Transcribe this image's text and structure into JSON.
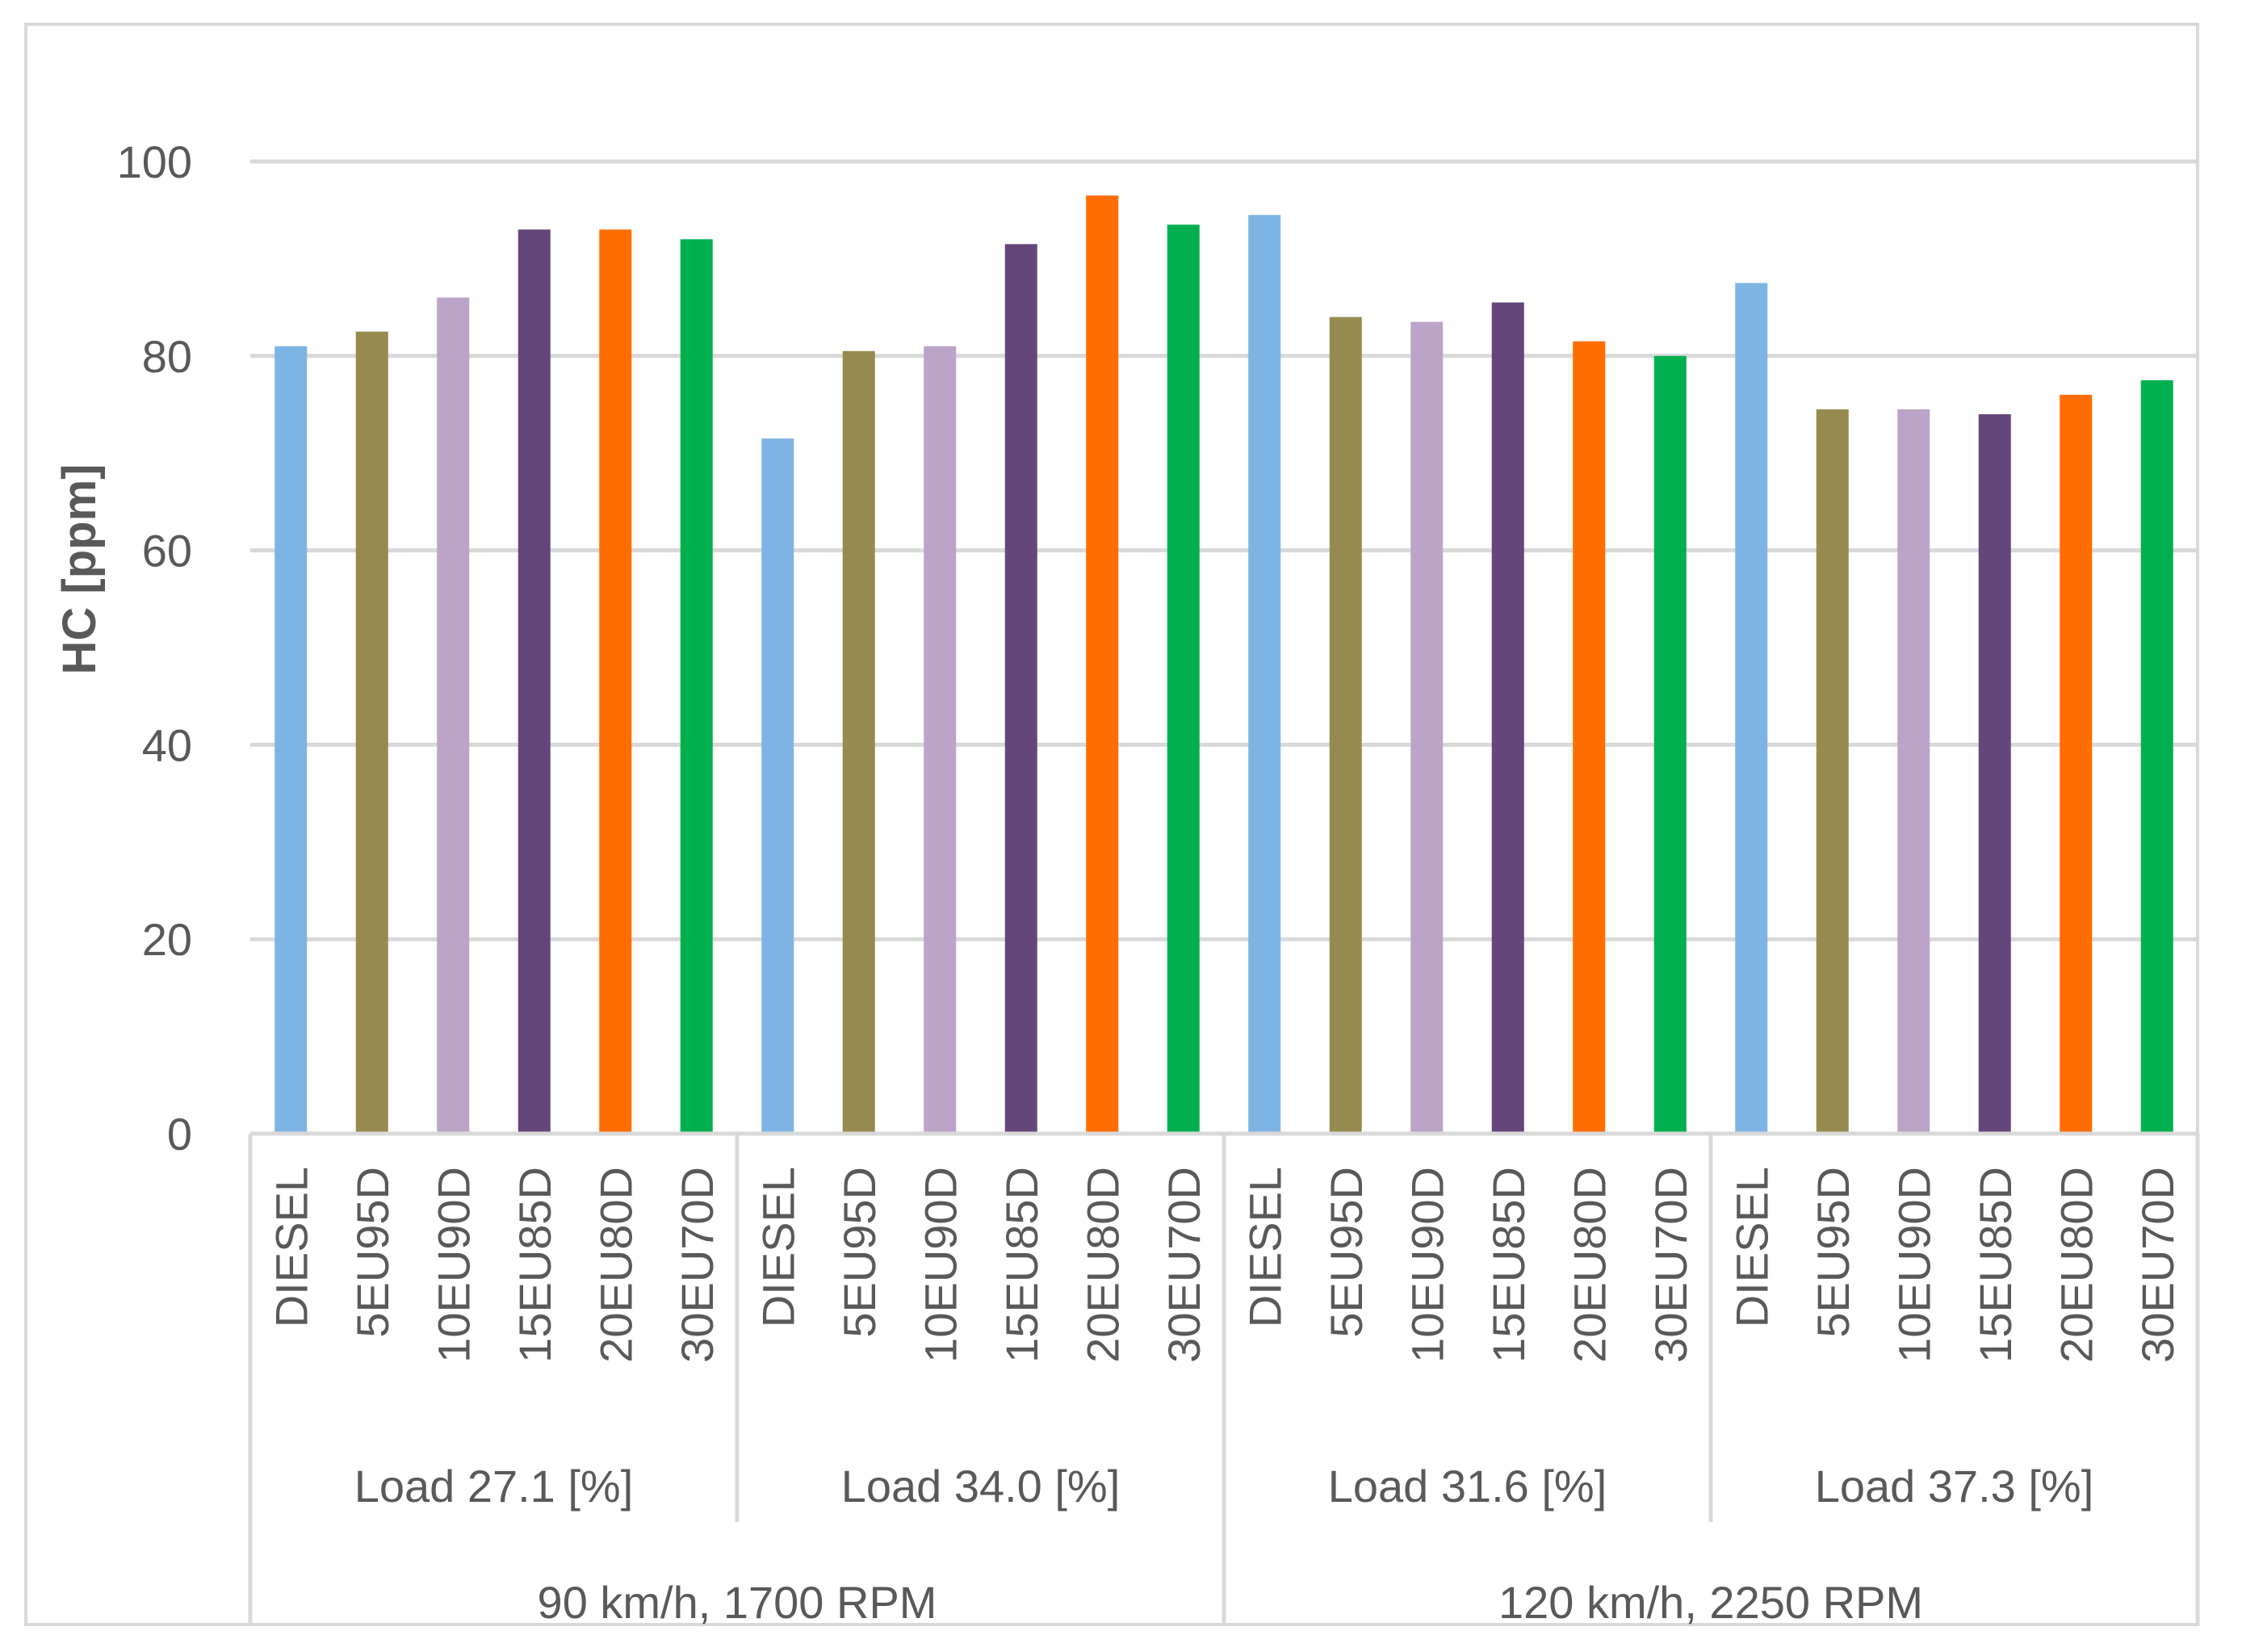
{
  "chart_data": {
    "type": "bar",
    "ylabel": "HC [ppm]",
    "ylim": [
      0,
      100
    ],
    "yticks": [
      "0",
      "20",
      "40",
      "60",
      "80",
      "100"
    ],
    "grid": true,
    "colors": {
      "DIESEL": "#7eb4e3",
      "5EU95D": "#978a4f",
      "10EU90D": "#bca4c9",
      "15EU85D": "#65467b",
      "20EU80D": "#ff6d00",
      "30EU70D": "#00b04f"
    },
    "groups": [
      {
        "speed": "90 km/h, 1700 RPM",
        "loads": [
          {
            "load": "Load 27.1 [%]",
            "categories": [
              "DIESEL",
              "5EU95D",
              "10EU90D",
              "15EU85D",
              "20EU80D",
              "30EU70D"
            ],
            "values": [
              81,
              82.5,
              86,
              93,
              93,
              92
            ]
          },
          {
            "load": "Load 34.0 [%]",
            "categories": [
              "DIESEL",
              "5EU95D",
              "10EU90D",
              "15EU85D",
              "20EU80D",
              "30EU70D"
            ],
            "values": [
              71.5,
              80.5,
              81,
              91.5,
              96.5,
              93.5
            ]
          }
        ]
      },
      {
        "speed": "120 km/h, 2250 RPM",
        "loads": [
          {
            "load": "Load 31.6 [%]",
            "categories": [
              "DIESEL",
              "5EU95D",
              "10EU90D",
              "15EU85D",
              "20EU80D",
              "30EU70D"
            ],
            "values": [
              94.5,
              84,
              83.5,
              85.5,
              81.5,
              80
            ]
          },
          {
            "load": "Load 37.3 [%]",
            "categories": [
              "DIESEL",
              "5EU95D",
              "10EU90D",
              "15EU85D",
              "20EU80D",
              "30EU70D"
            ],
            "values": [
              87.5,
              74.5,
              74.5,
              74,
              76,
              77.5
            ]
          }
        ]
      }
    ]
  }
}
